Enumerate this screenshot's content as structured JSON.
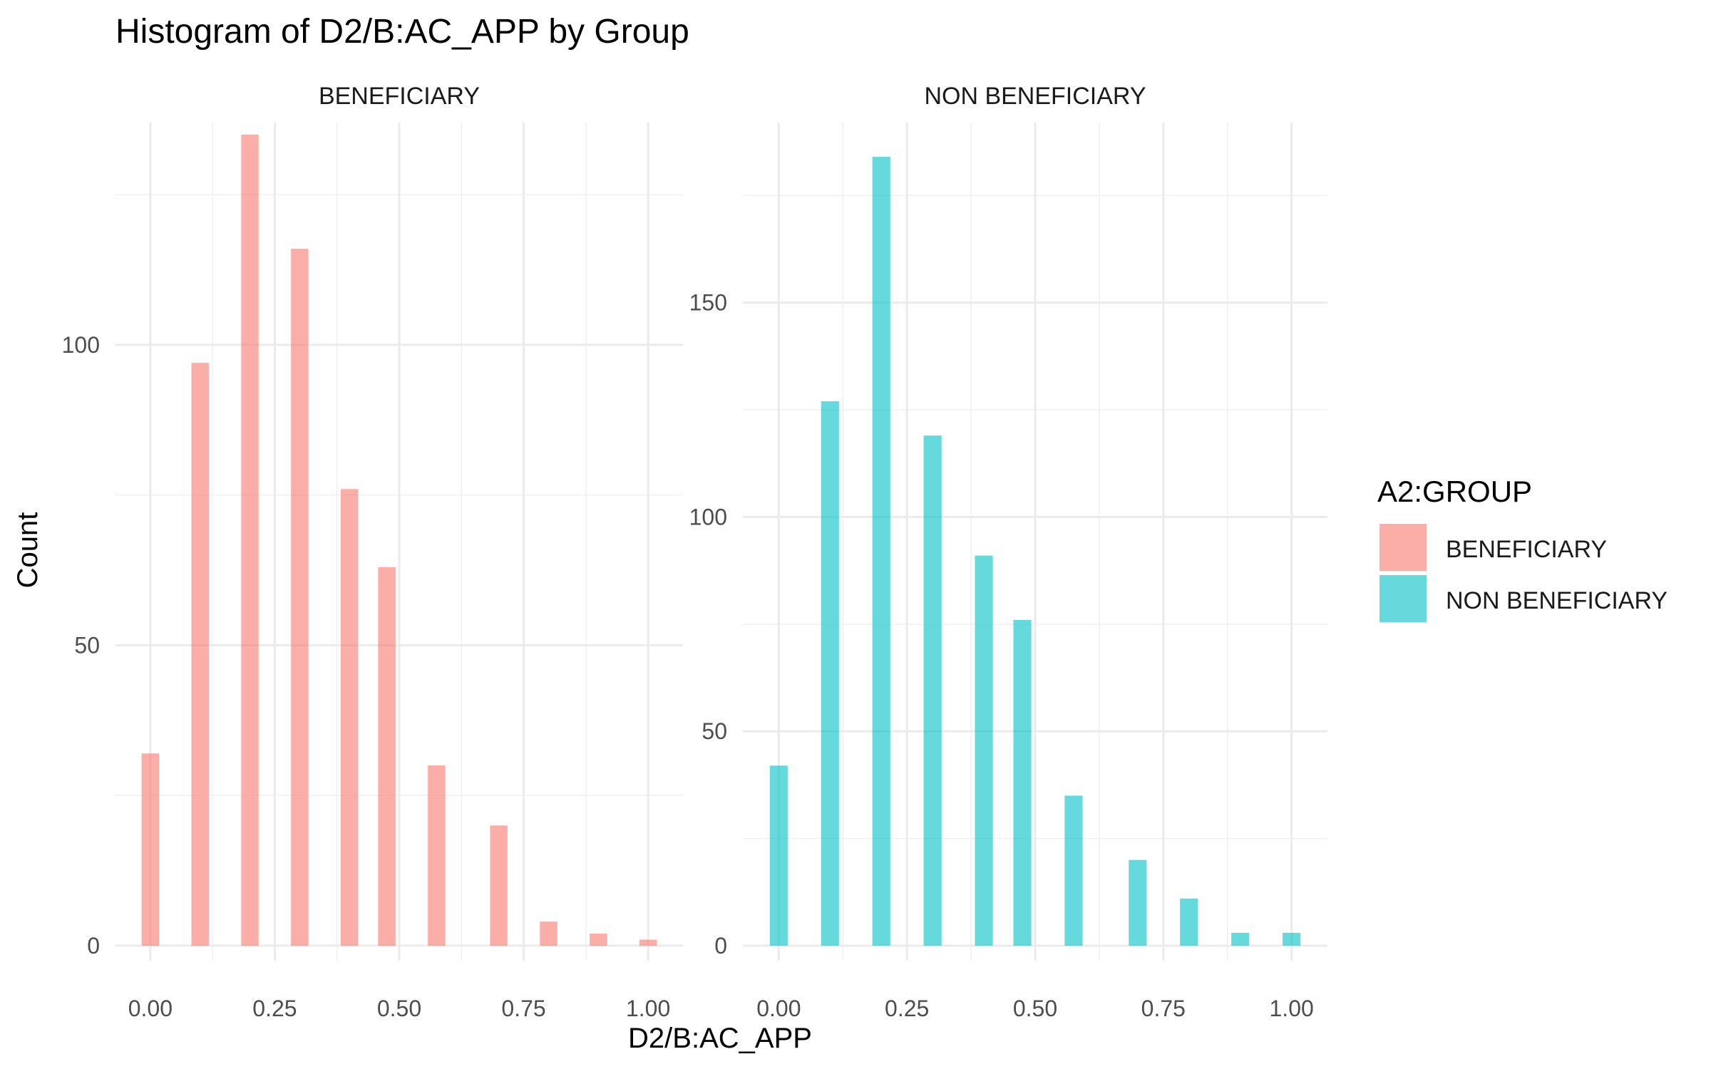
{
  "chart_data": {
    "type": "bar",
    "title": "Histogram of D2/B:AC_APP by Group",
    "xlabel": "D2/B:AC_APP",
    "ylabel": "Count",
    "xlim": [
      -0.07,
      1.07
    ],
    "xticks": [
      0.0,
      0.25,
      0.5,
      0.75,
      1.0
    ],
    "xtick_labels": [
      "0.00",
      "0.25",
      "0.50",
      "0.75",
      "1.00"
    ],
    "grid": true,
    "bar_width": 0.035,
    "legend": {
      "title": "A2:GROUP",
      "position": "right",
      "entries": [
        {
          "label": "BENEFICIARY",
          "color": "#F8766D"
        },
        {
          "label": "NON BENEFICIARY",
          "color": "#00BFC4"
        }
      ]
    },
    "facets": [
      {
        "strip": "BENEFICIARY",
        "color": "#F8766D",
        "ylim": [
          -2.5,
          137
        ],
        "yticks": [
          0,
          50,
          100
        ],
        "ytick_labels": [
          "0",
          "50",
          "100"
        ],
        "x": [
          0.0,
          0.1,
          0.2,
          0.3,
          0.4,
          0.475,
          0.575,
          0.7,
          0.8,
          0.9,
          1.0
        ],
        "values": [
          32,
          97,
          135,
          116,
          76,
          63,
          30,
          20,
          4,
          2,
          1
        ]
      },
      {
        "strip": "NON BENEFICIARY",
        "color": "#00BFC4",
        "ylim": [
          -3.5,
          192
        ],
        "yticks": [
          0,
          50,
          100,
          150
        ],
        "ytick_labels": [
          "0",
          "50",
          "100",
          "150"
        ],
        "x": [
          0.0,
          0.1,
          0.2,
          0.3,
          0.4,
          0.475,
          0.575,
          0.7,
          0.8,
          0.9,
          1.0
        ],
        "values": [
          42,
          127,
          184,
          119,
          91,
          76,
          35,
          20,
          11,
          3,
          3
        ]
      }
    ]
  }
}
